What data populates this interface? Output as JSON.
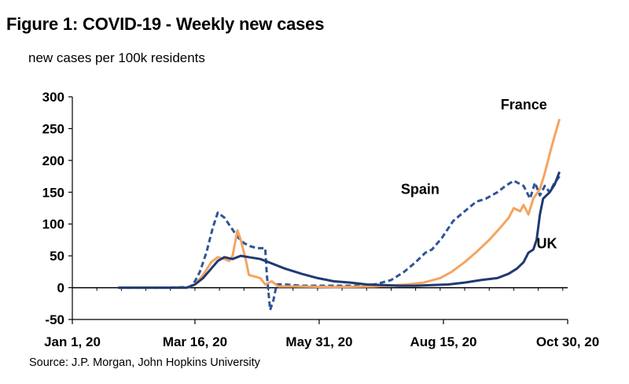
{
  "header": {
    "title": "Figure 1: COVID-19 - Weekly new cases",
    "subtitle": "new cases per 100k residents"
  },
  "footer": {
    "source": "Source: J.P. Morgan, John Hopkins University"
  },
  "chart_data": {
    "type": "line",
    "title": "Figure 1: COVID-19 - Weekly new cases",
    "subtitle": "new cases per 100k residents",
    "xlabel": "",
    "ylabel": "new cases per 100k residents",
    "x_unit": "days since Jan 1, 20",
    "xlim": [
      0,
      303
    ],
    "ylim": [
      -50,
      300
    ],
    "y_ticks": [
      300,
      250,
      200,
      150,
      100,
      50,
      0,
      -50
    ],
    "x_ticks": [
      {
        "label": "Jan 1, 20",
        "day": 0
      },
      {
        "label": "Mar 16, 20",
        "day": 75
      },
      {
        "label": "May 31, 20",
        "day": 151
      },
      {
        "label": "Aug 15, 20",
        "day": 227
      },
      {
        "label": "Oct 30, 20",
        "day": 303
      }
    ],
    "series": [
      {
        "name": "Spain",
        "color": "#2e5597",
        "style": "dashed",
        "label": "Spain",
        "label_day": 201,
        "label_value": 147,
        "points": [
          [
            28,
            0
          ],
          [
            55,
            0
          ],
          [
            72,
            1
          ],
          [
            75,
            10
          ],
          [
            78,
            25
          ],
          [
            82,
            55
          ],
          [
            86,
            95
          ],
          [
            89,
            118
          ],
          [
            93,
            110
          ],
          [
            97,
            95
          ],
          [
            101,
            80
          ],
          [
            105,
            70
          ],
          [
            109,
            65
          ],
          [
            113,
            62
          ],
          [
            118,
            62
          ],
          [
            119,
            20
          ],
          [
            121,
            -35
          ],
          [
            123,
            -20
          ],
          [
            125,
            5
          ],
          [
            130,
            5
          ],
          [
            140,
            3
          ],
          [
            160,
            3
          ],
          [
            175,
            3
          ],
          [
            185,
            5
          ],
          [
            195,
            12
          ],
          [
            203,
            25
          ],
          [
            210,
            40
          ],
          [
            216,
            55
          ],
          [
            220,
            60
          ],
          [
            226,
            78
          ],
          [
            233,
            105
          ],
          [
            240,
            120
          ],
          [
            247,
            135
          ],
          [
            253,
            140
          ],
          [
            260,
            150
          ],
          [
            265,
            160
          ],
          [
            270,
            168
          ],
          [
            276,
            160
          ],
          [
            280,
            140
          ],
          [
            283,
            165
          ],
          [
            286,
            145
          ],
          [
            289,
            160
          ],
          [
            292,
            150
          ],
          [
            295,
            165
          ],
          [
            298,
            175
          ]
        ]
      },
      {
        "name": "France",
        "color": "#f4a460",
        "style": "solid",
        "label": "France",
        "label_day": 262,
        "label_value": 280,
        "points": [
          [
            28,
            0
          ],
          [
            70,
            0
          ],
          [
            75,
            5
          ],
          [
            80,
            20
          ],
          [
            85,
            40
          ],
          [
            89,
            48
          ],
          [
            93,
            45
          ],
          [
            96,
            42
          ],
          [
            98,
            50
          ],
          [
            101,
            90
          ],
          [
            103,
            75
          ],
          [
            106,
            45
          ],
          [
            108,
            20
          ],
          [
            115,
            15
          ],
          [
            118,
            5
          ],
          [
            122,
            10
          ],
          [
            126,
            2
          ],
          [
            135,
            2
          ],
          [
            160,
            1
          ],
          [
            185,
            2
          ],
          [
            205,
            5
          ],
          [
            215,
            8
          ],
          [
            225,
            15
          ],
          [
            232,
            25
          ],
          [
            240,
            40
          ],
          [
            248,
            58
          ],
          [
            255,
            75
          ],
          [
            262,
            95
          ],
          [
            267,
            110
          ],
          [
            270,
            125
          ],
          [
            274,
            120
          ],
          [
            276,
            130
          ],
          [
            279,
            115
          ],
          [
            282,
            140
          ],
          [
            286,
            155
          ],
          [
            289,
            180
          ],
          [
            293,
            220
          ],
          [
            298,
            265
          ]
        ]
      },
      {
        "name": "UK",
        "color": "#1f3a73",
        "style": "solid",
        "label": "UK",
        "label_day": 284,
        "label_value": 62,
        "points": [
          [
            28,
            0
          ],
          [
            70,
            0
          ],
          [
            75,
            5
          ],
          [
            80,
            15
          ],
          [
            85,
            30
          ],
          [
            89,
            42
          ],
          [
            93,
            48
          ],
          [
            98,
            45
          ],
          [
            103,
            50
          ],
          [
            108,
            48
          ],
          [
            115,
            45
          ],
          [
            122,
            38
          ],
          [
            130,
            30
          ],
          [
            140,
            22
          ],
          [
            150,
            15
          ],
          [
            160,
            10
          ],
          [
            170,
            8
          ],
          [
            180,
            5
          ],
          [
            190,
            4
          ],
          [
            200,
            3
          ],
          [
            210,
            3
          ],
          [
            220,
            4
          ],
          [
            230,
            5
          ],
          [
            240,
            8
          ],
          [
            250,
            12
          ],
          [
            260,
            15
          ],
          [
            267,
            22
          ],
          [
            272,
            30
          ],
          [
            276,
            40
          ],
          [
            279,
            55
          ],
          [
            282,
            60
          ],
          [
            284,
            75
          ],
          [
            286,
            115
          ],
          [
            288,
            140
          ],
          [
            290,
            145
          ],
          [
            292,
            150
          ],
          [
            295,
            162
          ],
          [
            298,
            182
          ]
        ]
      }
    ]
  }
}
